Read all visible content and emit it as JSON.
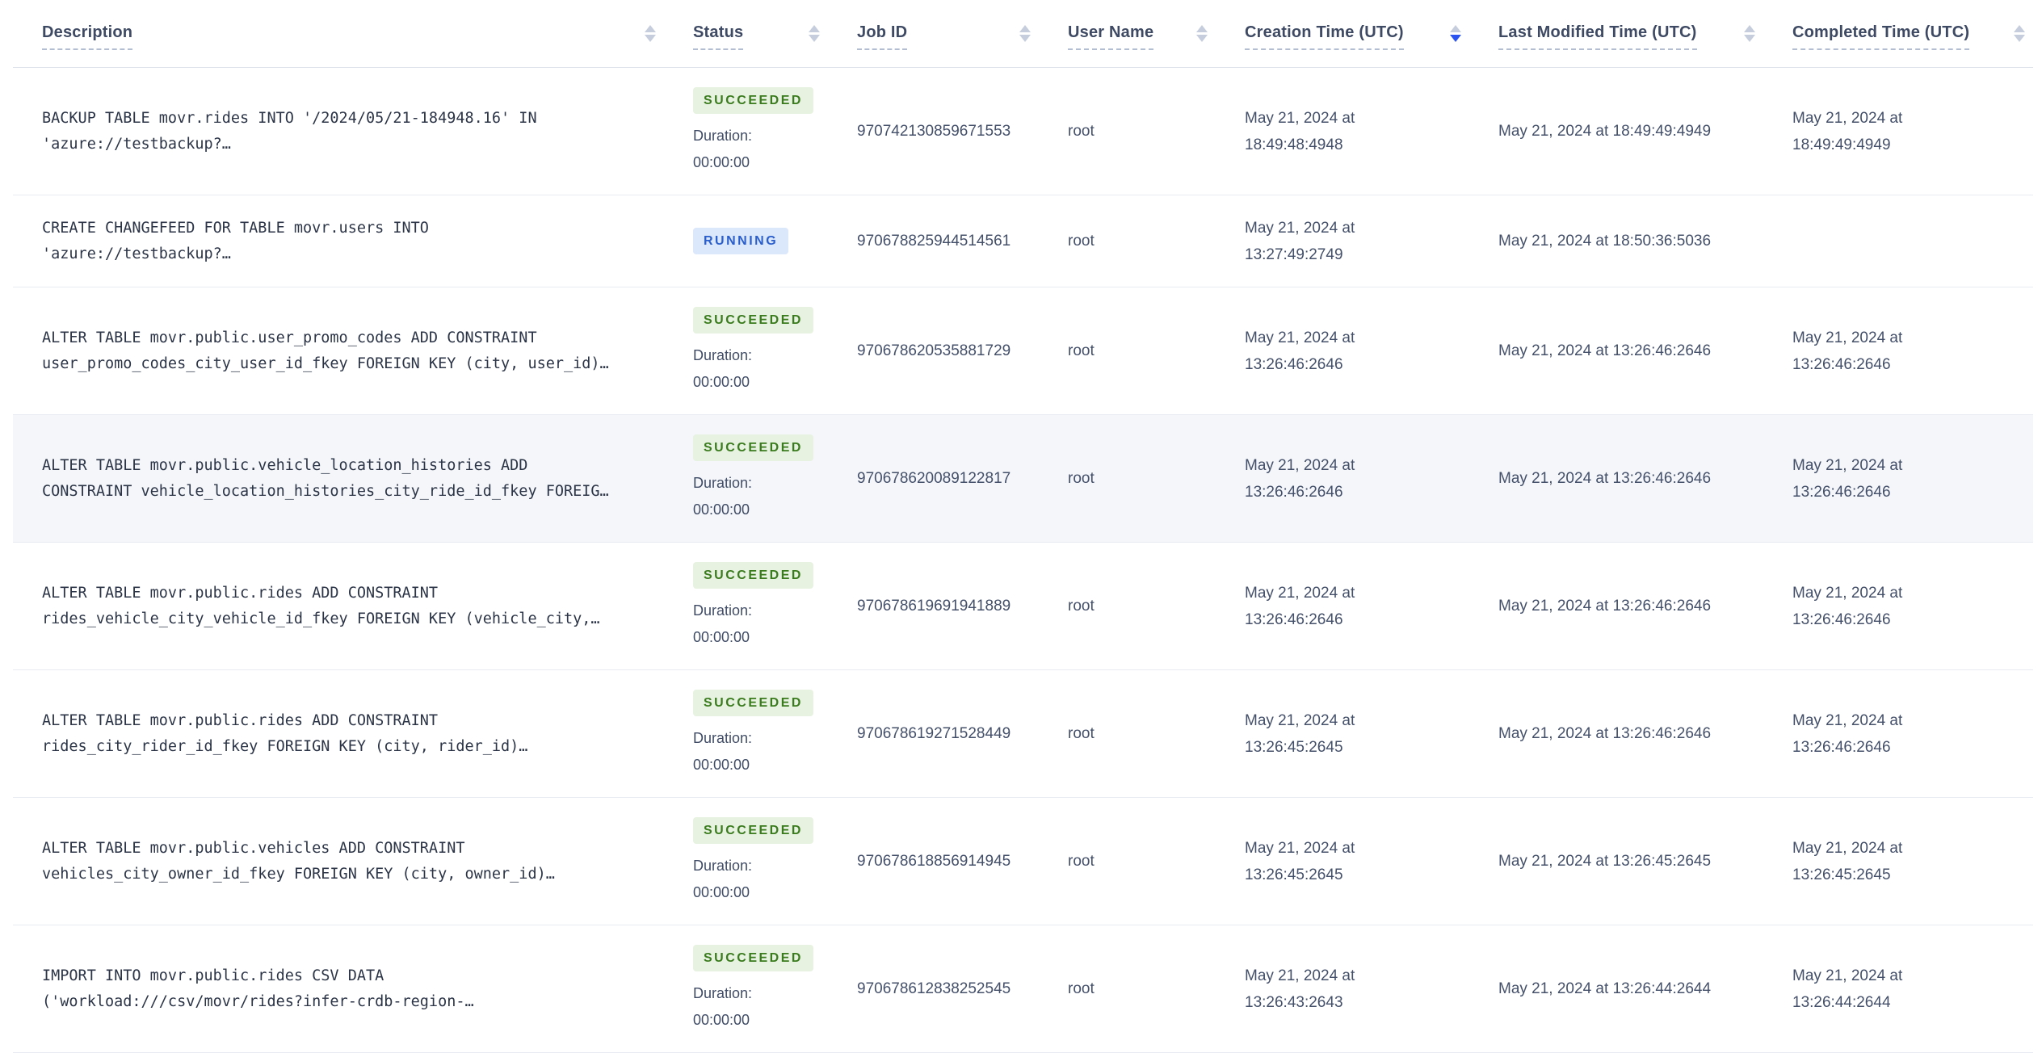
{
  "table": {
    "columns": [
      {
        "key": "description",
        "label": "Description",
        "sort": "none"
      },
      {
        "key": "status",
        "label": "Status",
        "sort": "none"
      },
      {
        "key": "job-id",
        "label": "Job ID",
        "sort": "none"
      },
      {
        "key": "user-name",
        "label": "User Name",
        "sort": "none"
      },
      {
        "key": "creation-time",
        "label": "Creation Time (UTC)",
        "sort": "desc"
      },
      {
        "key": "last-modified-time",
        "label": "Last Modified Time (UTC)",
        "sort": "none"
      },
      {
        "key": "completed-time",
        "label": "Completed Time (UTC)",
        "sort": "none"
      }
    ],
    "rows": [
      {
        "description": "BACKUP TABLE movr.rides INTO '/2024/05/21-184948.16' IN\n'azure://testbackup?…",
        "status": "SUCCEEDED",
        "duration": "Duration:\n00:00:00",
        "job_id": "970742130859671553",
        "user_name": "root",
        "creation": "May 21, 2024 at\n18:49:48:4948",
        "modified": "May 21, 2024 at 18:49:49:4949",
        "completed": "May 21, 2024 at\n18:49:49:4949",
        "highlighted": false
      },
      {
        "description": "CREATE CHANGEFEED FOR TABLE movr.users INTO\n'azure://testbackup?…",
        "status": "RUNNING",
        "duration": "",
        "job_id": "970678825944514561",
        "user_name": "root",
        "creation": "May 21, 2024 at\n13:27:49:2749",
        "modified": "May 21, 2024 at 18:50:36:5036",
        "completed": "",
        "highlighted": false
      },
      {
        "description": "ALTER TABLE movr.public.user_promo_codes ADD CONSTRAINT\nuser_promo_codes_city_user_id_fkey FOREIGN KEY (city, user_id)…",
        "status": "SUCCEEDED",
        "duration": "Duration:\n00:00:00",
        "job_id": "970678620535881729",
        "user_name": "root",
        "creation": "May 21, 2024 at\n13:26:46:2646",
        "modified": "May 21, 2024 at 13:26:46:2646",
        "completed": "May 21, 2024 at\n13:26:46:2646",
        "highlighted": false
      },
      {
        "description": "ALTER TABLE movr.public.vehicle_location_histories ADD\nCONSTRAINT vehicle_location_histories_city_ride_id_fkey FOREIG…",
        "status": "SUCCEEDED",
        "duration": "Duration:\n00:00:00",
        "job_id": "970678620089122817",
        "user_name": "root",
        "creation": "May 21, 2024 at\n13:26:46:2646",
        "modified": "May 21, 2024 at 13:26:46:2646",
        "completed": "May 21, 2024 at\n13:26:46:2646",
        "highlighted": true
      },
      {
        "description": "ALTER TABLE movr.public.rides ADD CONSTRAINT\nrides_vehicle_city_vehicle_id_fkey FOREIGN KEY (vehicle_city,…",
        "status": "SUCCEEDED",
        "duration": "Duration:\n00:00:00",
        "job_id": "970678619691941889",
        "user_name": "root",
        "creation": "May 21, 2024 at\n13:26:46:2646",
        "modified": "May 21, 2024 at 13:26:46:2646",
        "completed": "May 21, 2024 at\n13:26:46:2646",
        "highlighted": false
      },
      {
        "description": "ALTER TABLE movr.public.rides ADD CONSTRAINT\nrides_city_rider_id_fkey FOREIGN KEY (city, rider_id)…",
        "status": "SUCCEEDED",
        "duration": "Duration:\n00:00:00",
        "job_id": "970678619271528449",
        "user_name": "root",
        "creation": "May 21, 2024 at\n13:26:45:2645",
        "modified": "May 21, 2024 at 13:26:46:2646",
        "completed": "May 21, 2024 at\n13:26:46:2646",
        "highlighted": false
      },
      {
        "description": "ALTER TABLE movr.public.vehicles ADD CONSTRAINT\nvehicles_city_owner_id_fkey FOREIGN KEY (city, owner_id)…",
        "status": "SUCCEEDED",
        "duration": "Duration:\n00:00:00",
        "job_id": "970678618856914945",
        "user_name": "root",
        "creation": "May 21, 2024 at\n13:26:45:2645",
        "modified": "May 21, 2024 at 13:26:45:2645",
        "completed": "May 21, 2024 at\n13:26:45:2645",
        "highlighted": false
      },
      {
        "description": "IMPORT INTO movr.public.rides CSV DATA\n('workload:///csv/movr/rides?infer-crdb-region-…",
        "status": "SUCCEEDED",
        "duration": "Duration:\n00:00:00",
        "job_id": "970678612838252545",
        "user_name": "root",
        "creation": "May 21, 2024 at\n13:26:43:2643",
        "modified": "May 21, 2024 at 13:26:44:2644",
        "completed": "May 21, 2024 at\n13:26:44:2644",
        "highlighted": false
      }
    ]
  },
  "colors": {
    "succeeded_text": "#3a7b1d",
    "succeeded_bg": "#e7f2e1",
    "running_text": "#2a5ecb",
    "running_bg": "#dbe7fb",
    "active_sort_arrow": "#2b53f0",
    "inactive_sort_arrow": "#c6cedd",
    "highlight_row_bg": "#f4f6f9",
    "header_text": "#3e4a63",
    "body_text": "#44506a"
  }
}
